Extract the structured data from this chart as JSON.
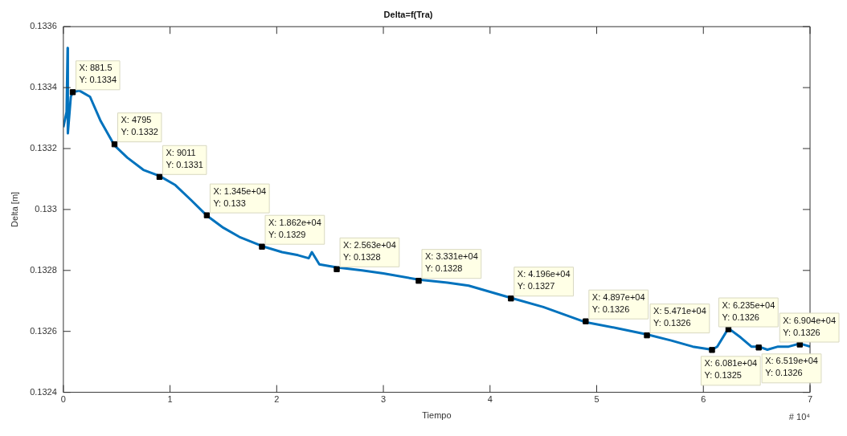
{
  "chart_data": {
    "type": "line",
    "title": "Delta=f(Tra)",
    "xlabel": "Tiempo",
    "ylabel": "Delta [m]",
    "xlim": [
      0,
      7
    ],
    "xticks": [
      0,
      1,
      2,
      3,
      4,
      5,
      6,
      7
    ],
    "ylim": [
      0.1324,
      0.1336
    ],
    "yticks": [
      0.1324,
      0.1326,
      0.1328,
      0.133,
      0.1332,
      0.1334,
      0.1336
    ],
    "grid": false,
    "legend": false,
    "series": [
      {
        "color": "#0072bd",
        "marker": "none",
        "x": [
          0,
          0.03,
          0.04,
          0.042,
          0.07,
          0.08815,
          0.15,
          0.25,
          0.35,
          0.4795,
          0.6,
          0.75,
          0.9011,
          1.05,
          1.2,
          1.345,
          1.5,
          1.65,
          1.862,
          2.05,
          2.2,
          2.3,
          2.33,
          2.4,
          2.563,
          2.8,
          3,
          3.331,
          3.6,
          3.8,
          4.196,
          4.5,
          4.897,
          5.2,
          5.471,
          5.7,
          5.9,
          6.081,
          6.13,
          6.235,
          6.35,
          6.45,
          6.519,
          6.6,
          6.7,
          6.8,
          6.904,
          7
        ],
        "values": [
          0.13327,
          0.13332,
          0.13353,
          0.13325,
          0.13337,
          0.133385,
          0.13339,
          0.13337,
          0.13329,
          0.13321,
          0.13317,
          0.13313,
          0.13311,
          0.13308,
          0.13303,
          0.13298,
          0.13294,
          0.13291,
          0.13288,
          0.13286,
          0.13285,
          0.13284,
          0.13286,
          0.13282,
          0.13281,
          0.1328,
          0.13279,
          0.13277,
          0.13276,
          0.13275,
          0.13271,
          0.13268,
          0.13263,
          0.13261,
          0.13259,
          0.13257,
          0.13255,
          0.13254,
          0.13255,
          0.13261,
          0.13258,
          0.13255,
          0.13255,
          0.13254,
          0.13255,
          0.13255,
          0.13256,
          0.13255
        ]
      },
      {
        "type": "scatter",
        "color": "#000000",
        "marker": "square",
        "x": [
          0.08815,
          0.4795,
          0.9011,
          1.345,
          1.862,
          2.563,
          3.331,
          4.196,
          4.897,
          5.471,
          6.081,
          6.235,
          6.519,
          6.904
        ],
        "values": [
          0.133385,
          0.133214,
          0.133107,
          0.132981,
          0.132878,
          0.132804,
          0.132766,
          0.132708,
          0.132633,
          0.132587,
          0.132539,
          0.132607,
          0.132547,
          0.132557
        ]
      }
    ],
    "annotations": [
      {
        "text": "X: 881.5\nY: 0.1334",
        "x": 0.08815,
        "y": 0.133385
      },
      {
        "text": "X: 4795\nY: 0.1332",
        "x": 0.4795,
        "y": 0.133214
      },
      {
        "text": "X: 9011\nY: 0.1331",
        "x": 0.9011,
        "y": 0.133107
      },
      {
        "text": "X: 1.345e+04\nY: 0.133",
        "x": 1.345,
        "y": 0.132981
      },
      {
        "text": "X: 1.862e+04\nY: 0.1329",
        "x": 1.862,
        "y": 0.132878
      },
      {
        "text": "X: 2.563e+04\nY: 0.1328",
        "x": 2.563,
        "y": 0.132804
      },
      {
        "text": "X: 3.331e+04\nY: 0.1328",
        "x": 3.331,
        "y": 0.132766
      },
      {
        "text": "X: 4.196e+04\nY: 0.1327",
        "x": 4.196,
        "y": 0.132708
      },
      {
        "text": "X: 4.897e+04\nY: 0.1326",
        "x": 4.897,
        "y": 0.132633
      },
      {
        "text": "X: 5.471e+04\nY: 0.1326",
        "x": 5.471,
        "y": 0.132587
      },
      {
        "text": "X: 6.081e+04\nY: 0.1325",
        "x": 6.081,
        "y": 0.132539
      },
      {
        "text": "X: 6.235e+04\nY: 0.1326",
        "x": 6.235,
        "y": 0.132607
      },
      {
        "text": "X: 6.519e+04\nY: 0.1326",
        "x": 6.519,
        "y": 0.132547
      },
      {
        "text": "X: 6.904e+04\nY: 0.1326",
        "x": 6.904,
        "y": 0.132557
      },
      "# 10⁴"
    ]
  }
}
